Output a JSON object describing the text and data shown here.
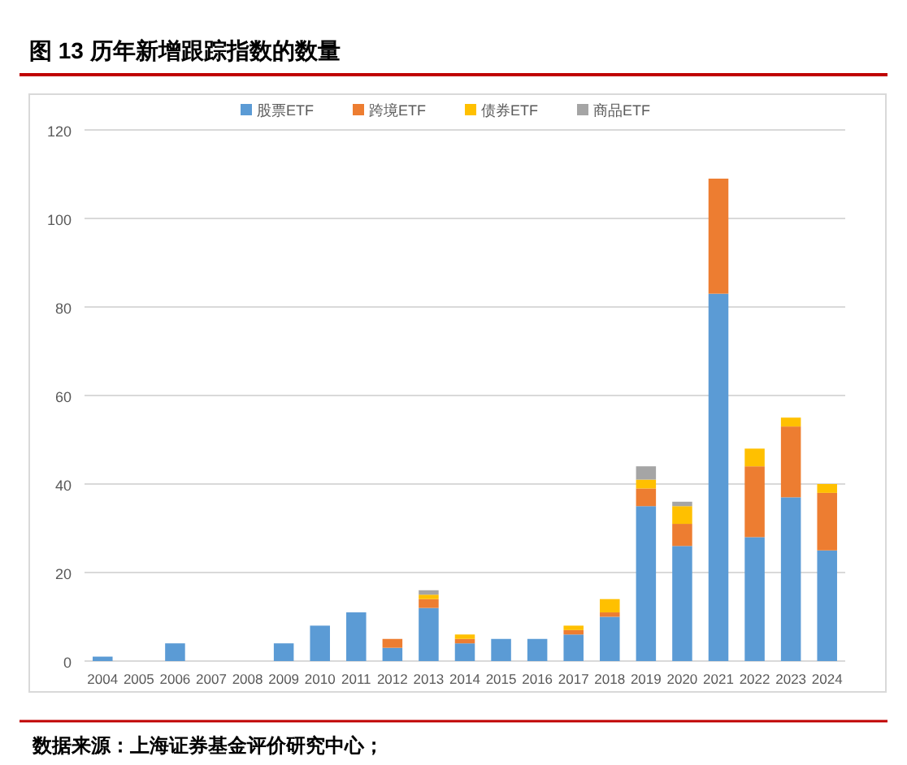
{
  "chart_data": {
    "type": "bar",
    "stacked": true,
    "title": "图 13 历年新增跟踪指数的数量",
    "categories": [
      "2004",
      "2005",
      "2006",
      "2007",
      "2008",
      "2009",
      "2010",
      "2011",
      "2012",
      "2013",
      "2014",
      "2015",
      "2016",
      "2017",
      "2018",
      "2019",
      "2020",
      "2021",
      "2022",
      "2023",
      "2024"
    ],
    "series": [
      {
        "name": "股票ETF",
        "color": "#5b9bd5",
        "values": [
          1,
          0,
          4,
          0,
          0,
          4,
          8,
          11,
          3,
          12,
          4,
          5,
          5,
          6,
          10,
          35,
          26,
          83,
          28,
          37,
          25
        ]
      },
      {
        "name": "跨境ETF",
        "color": "#ed7d31",
        "values": [
          0,
          0,
          0,
          0,
          0,
          0,
          0,
          0,
          2,
          2,
          1,
          0,
          0,
          1,
          1,
          4,
          5,
          26,
          16,
          16,
          13
        ]
      },
      {
        "name": "债券ETF",
        "color": "#ffc000",
        "values": [
          0,
          0,
          0,
          0,
          0,
          0,
          0,
          0,
          0,
          1,
          1,
          0,
          0,
          1,
          3,
          2,
          4,
          0,
          4,
          2,
          2
        ]
      },
      {
        "name": "商品ETF",
        "color": "#a5a5a5",
        "values": [
          0,
          0,
          0,
          0,
          0,
          0,
          0,
          0,
          0,
          1,
          0,
          0,
          0,
          0,
          0,
          3,
          1,
          0,
          0,
          0,
          0
        ]
      }
    ],
    "ylim": [
      0,
      120
    ],
    "yticks": [
      0,
      20,
      40,
      60,
      80,
      100,
      120
    ],
    "grid": "y",
    "legend": "top",
    "annotations": [
      "数据来源：上海证券基金评价研究中心；"
    ]
  }
}
